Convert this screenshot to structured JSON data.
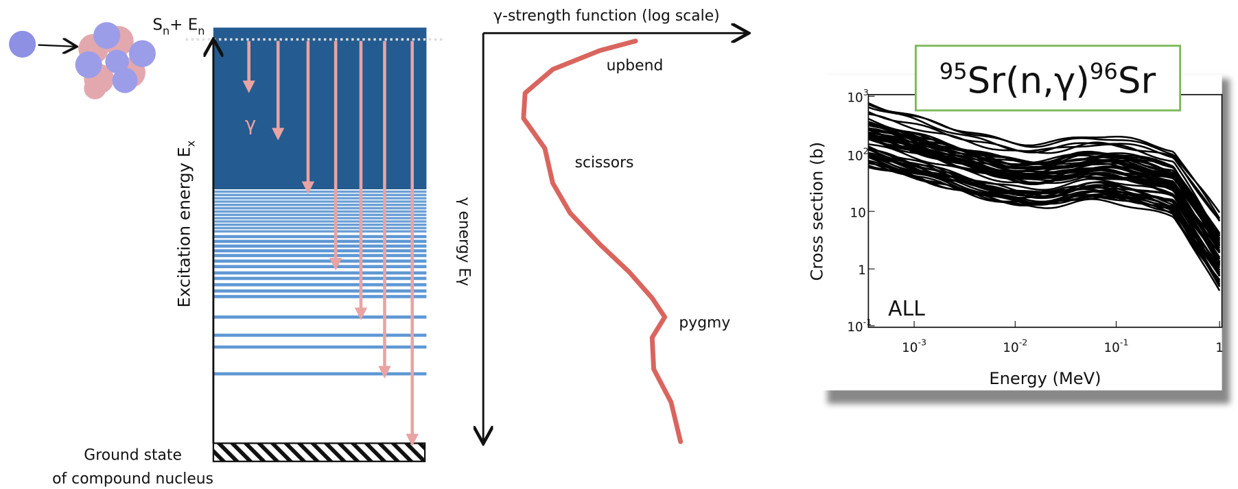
{
  "left_panel": {
    "threshold": {
      "s": "S",
      "s_sub": "n",
      "plus_e": "+ E",
      "e_sub": "n"
    },
    "gamma": "γ",
    "y_axis": {
      "text": "Excitation energy E",
      "sub": "x"
    },
    "ground_state": [
      "Ground state",
      "of compound nucleus"
    ]
  },
  "middle_panel": {
    "x_axis": "γ-strength function (log scale)",
    "y_axis": "γ energy Eγ",
    "features": [
      "upbend",
      "scissors",
      "pygmy"
    ]
  },
  "right_panel": {
    "title": {
      "sup1": "95",
      "part1": "Sr(n,γ)",
      "sup2": "96",
      "part2": "Sr"
    },
    "y_label": "Cross section (b)",
    "x_label": "Energy (MeV)",
    "annotation": "ALL",
    "y_ticks": [
      {
        "base": "10",
        "exp": "3"
      },
      {
        "base": "10",
        "exp": "2"
      },
      {
        "base": "10",
        "exp": ""
      },
      {
        "base": "1",
        "exp": ""
      },
      {
        "base": "10",
        "exp": "-1"
      }
    ],
    "x_ticks": [
      {
        "base": "10",
        "exp": "-3"
      },
      {
        "base": "10",
        "exp": "-2"
      },
      {
        "base": "10",
        "exp": "-1"
      },
      {
        "base": "1",
        "exp": ""
      }
    ]
  }
}
